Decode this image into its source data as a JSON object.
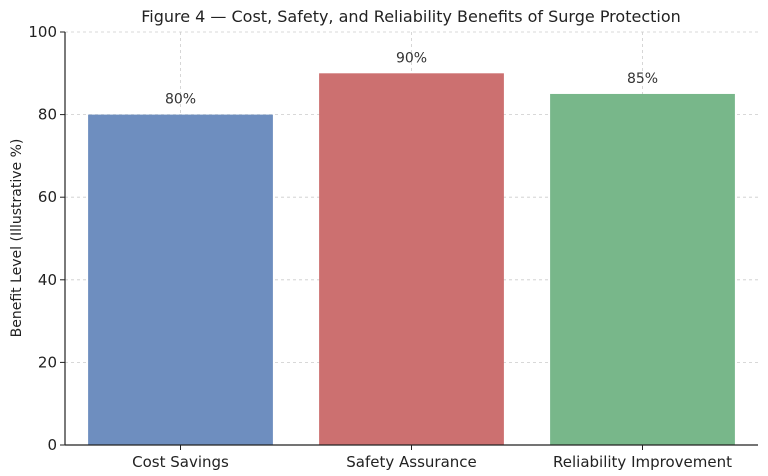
{
  "chart_data": {
    "type": "bar",
    "title": "Figure 4 — Cost, Safety, and Reliability Benefits of Surge Protection",
    "xlabel": "",
    "ylabel": "Benefit Level (Illustrative %)",
    "categories": [
      "Cost Savings",
      "Safety Assurance",
      "Reliability Improvement"
    ],
    "values": [
      80,
      90,
      85
    ],
    "data_labels": [
      "80%",
      "90%",
      "85%"
    ],
    "colors": [
      "#6e8ebf",
      "#cc7070",
      "#78b78a"
    ],
    "ylim": [
      0,
      100
    ],
    "yticks": [
      0,
      20,
      40,
      60,
      80,
      100
    ],
    "grid": true,
    "legend": "none"
  }
}
